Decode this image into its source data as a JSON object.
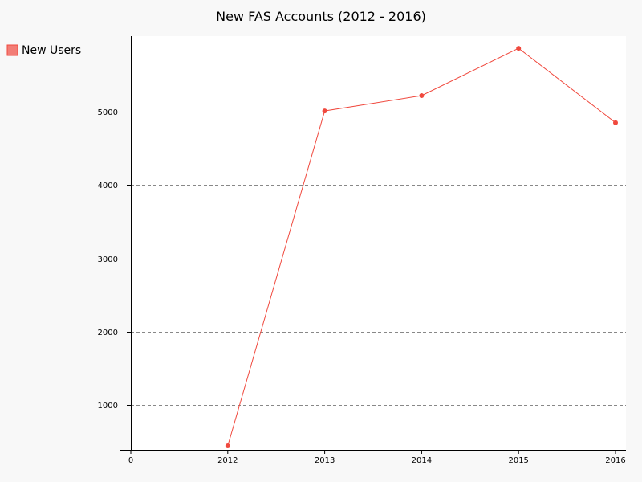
{
  "chart_data": {
    "type": "line",
    "title": "New FAS Accounts (2012 - 2016)",
    "xlabel": "",
    "ylabel": "",
    "x_ticks": [
      "0",
      "2012",
      "2013",
      "2014",
      "2015",
      "2016"
    ],
    "y_ticks": [
      "1000",
      "2000",
      "3000",
      "4000",
      "5000"
    ],
    "ylim": [
      390,
      6030
    ],
    "grid": true,
    "legend_position": "top-left",
    "series": [
      {
        "name": "New Users",
        "color": "#f0493e",
        "points": [
          {
            "x": "2012",
            "y": 445
          },
          {
            "x": "2013",
            "y": 5010
          },
          {
            "x": "2014",
            "y": 5220
          },
          {
            "x": "2015",
            "y": 5865
          },
          {
            "x": "2016",
            "y": 4850
          }
        ]
      }
    ]
  }
}
